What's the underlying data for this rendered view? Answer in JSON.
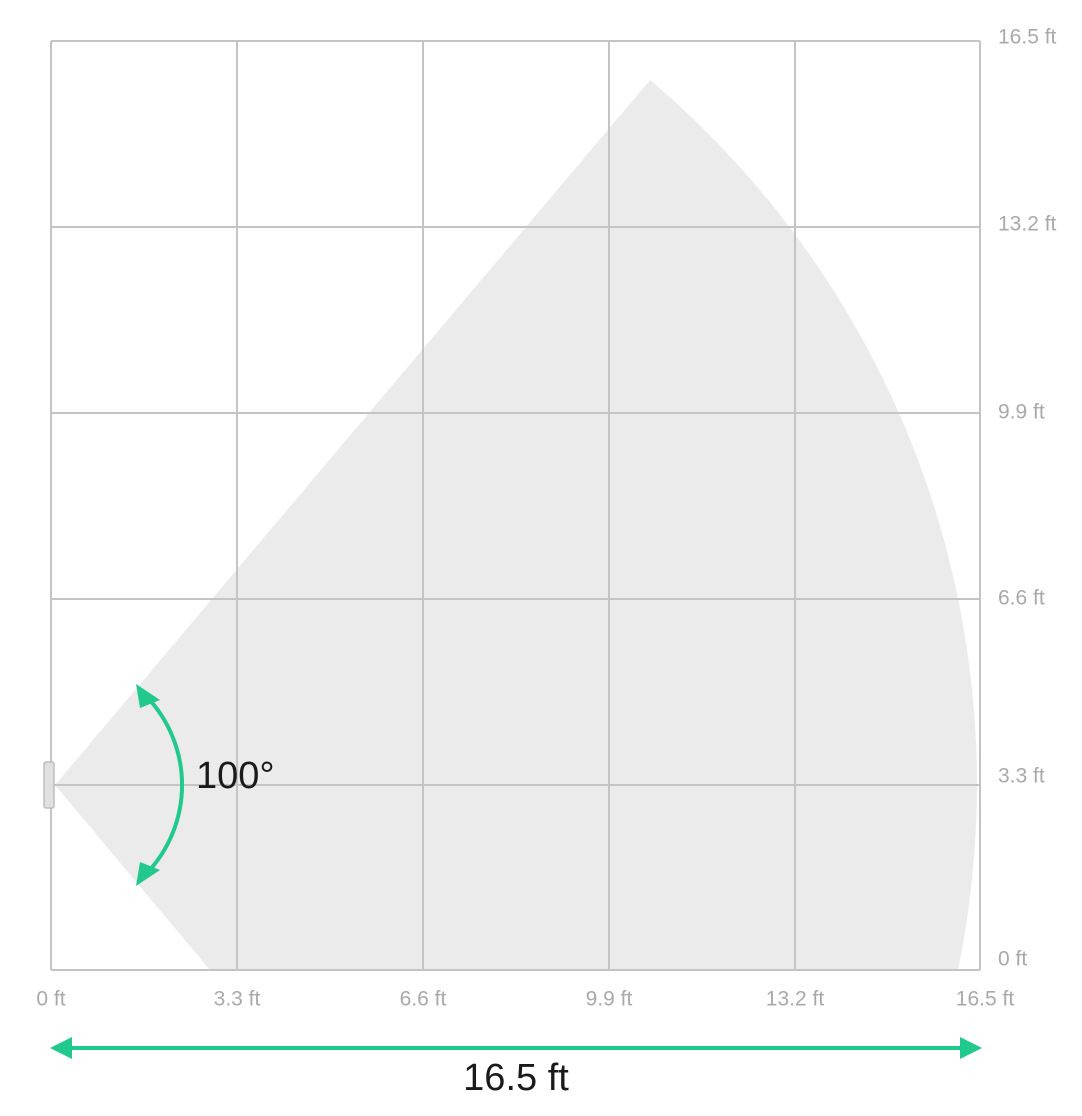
{
  "x_axis_labels": [
    "0 ft",
    "3.3 ft",
    "6.6 ft",
    "9.9 ft",
    "13.2 ft",
    "16.5 ft"
  ],
  "y_axis_labels": [
    "0 ft",
    "3.3 ft",
    "6.6 ft",
    "9.9 ft",
    "13.2 ft",
    "16.5 ft"
  ],
  "angle_label": "100°",
  "width_label": "16.5 ft"
}
